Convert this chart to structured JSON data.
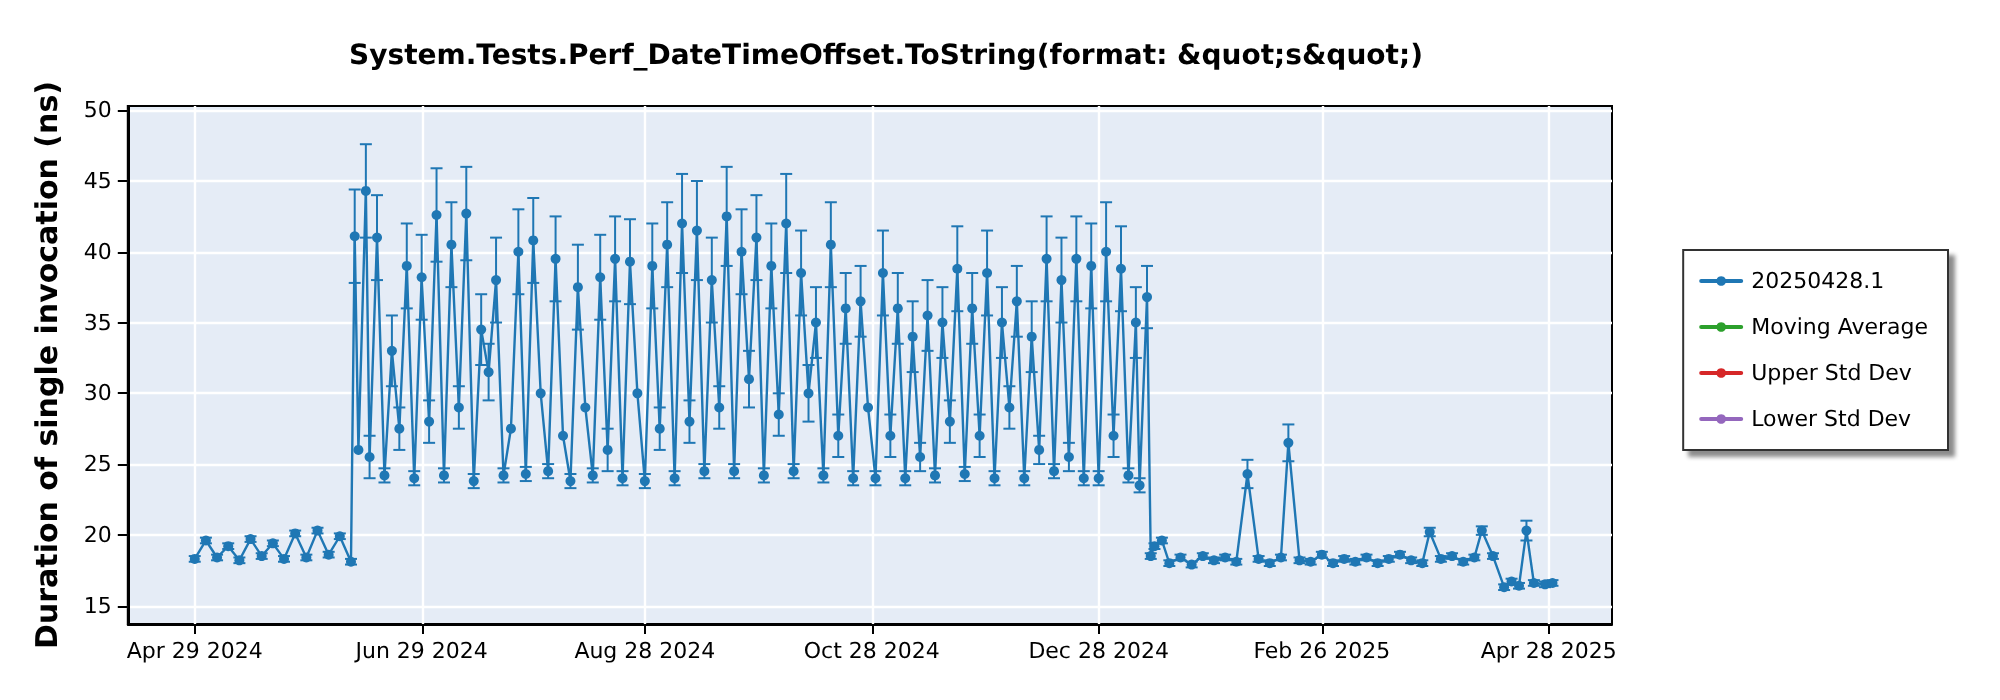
{
  "chart_data": {
    "type": "line",
    "title": "System.Tests.Perf_DateTimeOffset.ToString(format: &quot;s&quot;)",
    "ylabel": "Duration of single invocation (ns)",
    "xlim": [
      "2024-04-11",
      "2025-05-15"
    ],
    "xticks": [
      {
        "value": "2024-04-29",
        "label": "Apr 29 2024"
      },
      {
        "value": "2024-06-29",
        "label": "Jun 29 2024"
      },
      {
        "value": "2024-08-28",
        "label": "Aug 28 2024"
      },
      {
        "value": "2024-10-28",
        "label": "Oct 28 2024"
      },
      {
        "value": "2024-12-28",
        "label": "Dec 28 2024"
      },
      {
        "value": "2025-02-26",
        "label": "Feb 26 2025"
      },
      {
        "value": "2025-04-28",
        "label": "Apr 28 2025"
      }
    ],
    "ylim": [
      13.7,
      50.3
    ],
    "yticks": [
      15,
      20,
      25,
      30,
      35,
      40,
      45,
      50
    ],
    "grid": true,
    "legend": "right",
    "marker": "circle",
    "line_style": "solid",
    "series": [
      {
        "name": "20250428.1",
        "color": "#1f77b4",
        "x": [
          "2024-04-29",
          "2024-05-02",
          "2024-05-05",
          "2024-05-08",
          "2024-05-11",
          "2024-05-14",
          "2024-05-17",
          "2024-05-20",
          "2024-05-23",
          "2024-05-26",
          "2024-05-29",
          "2024-06-01",
          "2024-06-04",
          "2024-06-07",
          "2024-06-10",
          "2024-06-11",
          "2024-06-12",
          "2024-06-14",
          "2024-06-15",
          "2024-06-17",
          "2024-06-19",
          "2024-06-21",
          "2024-06-23",
          "2024-06-25",
          "2024-06-27",
          "2024-06-29",
          "2024-07-01",
          "2024-07-03",
          "2024-07-05",
          "2024-07-07",
          "2024-07-09",
          "2024-07-11",
          "2024-07-13",
          "2024-07-15",
          "2024-07-17",
          "2024-07-19",
          "2024-07-21",
          "2024-07-23",
          "2024-07-25",
          "2024-07-27",
          "2024-07-29",
          "2024-07-31",
          "2024-08-02",
          "2024-08-04",
          "2024-08-06",
          "2024-08-08",
          "2024-08-10",
          "2024-08-12",
          "2024-08-14",
          "2024-08-16",
          "2024-08-18",
          "2024-08-20",
          "2024-08-22",
          "2024-08-24",
          "2024-08-26",
          "2024-08-28",
          "2024-08-30",
          "2024-09-01",
          "2024-09-03",
          "2024-09-05",
          "2024-09-07",
          "2024-09-09",
          "2024-09-11",
          "2024-09-13",
          "2024-09-15",
          "2024-09-17",
          "2024-09-19",
          "2024-09-21",
          "2024-09-23",
          "2024-09-25",
          "2024-09-27",
          "2024-09-29",
          "2024-10-01",
          "2024-10-03",
          "2024-10-05",
          "2024-10-07",
          "2024-10-09",
          "2024-10-11",
          "2024-10-13",
          "2024-10-15",
          "2024-10-17",
          "2024-10-19",
          "2024-10-21",
          "2024-10-23",
          "2024-10-25",
          "2024-10-27",
          "2024-10-29",
          "2024-10-31",
          "2024-11-02",
          "2024-11-04",
          "2024-11-06",
          "2024-11-08",
          "2024-11-10",
          "2024-11-12",
          "2024-11-14",
          "2024-11-16",
          "2024-11-18",
          "2024-11-20",
          "2024-11-22",
          "2024-11-24",
          "2024-11-26",
          "2024-11-28",
          "2024-11-30",
          "2024-12-02",
          "2024-12-04",
          "2024-12-06",
          "2024-12-08",
          "2024-12-10",
          "2024-12-12",
          "2024-12-14",
          "2024-12-16",
          "2024-12-18",
          "2024-12-20",
          "2024-12-22",
          "2024-12-24",
          "2024-12-26",
          "2024-12-28",
          "2024-12-30",
          "2025-01-01",
          "2025-01-03",
          "2025-01-05",
          "2025-01-07",
          "2025-01-08",
          "2025-01-10",
          "2025-01-11",
          "2025-01-12",
          "2025-01-14",
          "2025-01-16",
          "2025-01-19",
          "2025-01-22",
          "2025-01-25",
          "2025-01-28",
          "2025-01-31",
          "2025-02-03",
          "2025-02-06",
          "2025-02-09",
          "2025-02-12",
          "2025-02-15",
          "2025-02-17",
          "2025-02-20",
          "2025-02-23",
          "2025-02-26",
          "2025-03-01",
          "2025-03-04",
          "2025-03-07",
          "2025-03-10",
          "2025-03-13",
          "2025-03-16",
          "2025-03-19",
          "2025-03-22",
          "2025-03-25",
          "2025-03-27",
          "2025-03-30",
          "2025-04-02",
          "2025-04-05",
          "2025-04-08",
          "2025-04-10",
          "2025-04-13",
          "2025-04-16",
          "2025-04-18",
          "2025-04-20",
          "2025-04-22",
          "2025-04-24",
          "2025-04-27",
          "2025-04-29"
        ],
        "values": [
          18.3,
          19.6,
          18.4,
          19.2,
          18.2,
          19.7,
          18.5,
          19.4,
          18.3,
          20.1,
          18.4,
          20.3,
          18.6,
          19.9,
          18.1,
          41.1,
          26.0,
          44.3,
          25.5,
          41.0,
          24.2,
          33.0,
          27.5,
          39.0,
          24.0,
          38.2,
          28.0,
          42.6,
          24.2,
          40.5,
          29.0,
          42.7,
          23.8,
          34.5,
          31.5,
          38.0,
          24.2,
          27.5,
          40.0,
          24.3,
          40.8,
          30.0,
          24.5,
          39.5,
          27.0,
          23.8,
          37.5,
          29.0,
          24.2,
          38.2,
          26.0,
          39.5,
          24.0,
          39.3,
          30.0,
          23.8,
          39.0,
          27.5,
          40.5,
          24.0,
          42.0,
          28.0,
          41.5,
          24.5,
          38.0,
          29.0,
          42.5,
          24.5,
          40.0,
          31.0,
          41.0,
          24.2,
          39.0,
          28.5,
          42.0,
          24.5,
          38.5,
          30.0,
          35.0,
          24.2,
          40.5,
          27.0,
          36.0,
          24.0,
          36.5,
          29.0,
          24.0,
          38.5,
          27.0,
          36.0,
          24.0,
          34.0,
          25.5,
          35.5,
          24.2,
          35.0,
          28.0,
          38.8,
          24.3,
          36.0,
          27.0,
          38.5,
          24.0,
          35.0,
          29.0,
          36.5,
          24.0,
          34.0,
          26.0,
          39.5,
          24.5,
          38.0,
          25.5,
          39.5,
          24.0,
          39.0,
          24.0,
          40.0,
          27.0,
          38.8,
          24.2,
          35.0,
          23.5,
          36.8,
          18.5,
          19.2,
          19.6,
          18.0,
          18.4,
          17.9,
          18.5,
          18.2,
          18.4,
          18.1,
          24.3,
          18.3,
          18.0,
          18.4,
          26.5,
          18.2,
          18.1,
          18.6,
          18.0,
          18.3,
          18.1,
          18.4,
          18.0,
          18.3,
          18.6,
          18.2,
          18.0,
          20.2,
          18.3,
          18.5,
          18.1,
          18.4,
          20.3,
          18.5,
          16.3,
          16.7,
          16.4,
          20.3,
          16.6,
          16.5,
          16.6
        ],
        "errors": [
          0.2,
          0.2,
          0.2,
          0.2,
          0.2,
          0.2,
          0.2,
          0.2,
          0.2,
          0.2,
          0.2,
          0.2,
          0.2,
          0.2,
          0.2,
          3.3,
          null,
          3.3,
          1.5,
          3.0,
          0.5,
          2.5,
          1.5,
          3.0,
          0.5,
          3.0,
          1.5,
          3.3,
          0.5,
          3.0,
          1.5,
          3.3,
          0.5,
          2.5,
          2.0,
          3.0,
          0.5,
          null,
          3.0,
          0.5,
          3.0,
          null,
          0.5,
          3.0,
          null,
          0.5,
          3.0,
          null,
          0.5,
          3.0,
          1.5,
          3.0,
          0.5,
          3.0,
          null,
          0.5,
          3.0,
          1.5,
          3.0,
          0.5,
          3.5,
          1.5,
          3.5,
          0.5,
          3.0,
          1.5,
          3.5,
          0.5,
          3.0,
          2.0,
          3.0,
          0.5,
          3.0,
          1.5,
          3.5,
          0.5,
          3.0,
          2.0,
          2.5,
          0.5,
          3.0,
          1.5,
          2.5,
          0.5,
          2.5,
          null,
          0.5,
          3.0,
          1.5,
          2.5,
          0.5,
          2.5,
          1.0,
          2.5,
          0.5,
          2.5,
          1.5,
          3.0,
          0.5,
          2.5,
          1.5,
          3.0,
          0.5,
          2.5,
          1.5,
          2.5,
          0.5,
          2.5,
          1.0,
          3.0,
          0.5,
          3.0,
          1.0,
          3.0,
          0.5,
          3.0,
          0.5,
          3.5,
          1.5,
          3.0,
          0.5,
          2.5,
          0.5,
          2.2,
          0.2,
          0.2,
          0.2,
          0.2,
          0.2,
          0.2,
          0.2,
          0.2,
          0.2,
          0.2,
          1.0,
          0.2,
          0.2,
          0.2,
          1.3,
          0.2,
          0.2,
          0.2,
          0.2,
          0.2,
          0.2,
          0.2,
          0.2,
          0.2,
          0.2,
          0.2,
          0.2,
          0.3,
          0.2,
          0.2,
          0.2,
          0.2,
          0.3,
          0.2,
          0.2,
          0.2,
          0.2,
          0.7,
          0.2,
          0.2,
          0.2
        ]
      },
      {
        "name": "Moving Average",
        "color": "#2ca02c"
      },
      {
        "name": "Upper Std Dev",
        "color": "#d62728"
      },
      {
        "name": "Lower Std Dev",
        "color": "#9467bd"
      }
    ]
  }
}
